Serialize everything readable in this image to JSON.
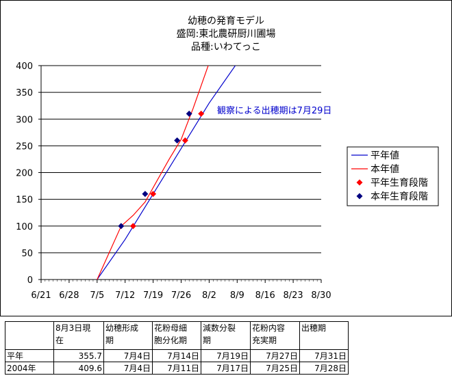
{
  "chart_data": {
    "type": "line",
    "title": [
      "幼穂の発育モデル",
      "盛岡:東北農研厨川圃場",
      "品種:いわてっこ"
    ],
    "x_ticks": [
      "6/21",
      "6/28",
      "7/5",
      "7/12",
      "7/19",
      "7/26",
      "8/2",
      "8/9",
      "8/16",
      "8/23",
      "8/30"
    ],
    "xlim": [
      "6/21",
      "8/30"
    ],
    "ylim": [
      0,
      400
    ],
    "y_ticks": [
      0,
      50,
      100,
      150,
      200,
      250,
      300,
      350,
      400
    ],
    "grid": "horizontal",
    "legend_position": "right",
    "series": [
      {
        "name": "平年値",
        "kind": "line",
        "color": "#0000cc",
        "x": [
          "7/5",
          "7/12",
          "7/19",
          "7/26",
          "8/2",
          "8/9"
        ],
        "y": [
          0,
          75,
          160,
          245,
          330,
          405
        ]
      },
      {
        "name": "本年値",
        "kind": "line",
        "color": "#ff0000",
        "x": [
          "7/5",
          "7/11",
          "7/14",
          "7/17",
          "7/20",
          "7/23",
          "7/26",
          "7/29",
          "8/2"
        ],
        "y": [
          0,
          100,
          120,
          145,
          185,
          225,
          262,
          320,
          405
        ]
      },
      {
        "name": "平年生育段階",
        "kind": "marker",
        "color": "#ff0000",
        "x": [
          "7/14",
          "7/19",
          "7/27",
          "7/31"
        ],
        "y": [
          100,
          160,
          260,
          310
        ]
      },
      {
        "name": "本年生育段階",
        "kind": "marker",
        "color": "#000080",
        "x": [
          "7/11",
          "7/17",
          "7/25",
          "7/28"
        ],
        "y": [
          100,
          160,
          260,
          310
        ]
      }
    ],
    "annotation": "観察による出穂期は7月29日"
  },
  "table": {
    "headers": [
      "8月3日現在",
      "幼穂形成期",
      "花粉母細胞分化期",
      "減数分裂期",
      "花粉内容充実期",
      "出穂期"
    ],
    "header_lines": [
      [
        "8月3日現",
        "在"
      ],
      [
        "幼穂形成",
        "期"
      ],
      [
        "花粉母細",
        "胞分化期"
      ],
      [
        "減数分裂",
        "期"
      ],
      [
        "花粉内容",
        "充実期"
      ],
      [
        "出穂期"
      ]
    ],
    "rows": [
      {
        "label": "平年",
        "values": [
          "355.7",
          "7月4日",
          "7月14日",
          "7月19日",
          "7月27日",
          "7月31日"
        ]
      },
      {
        "label": "2004年",
        "values": [
          "409.6",
          "7月4日",
          "7月11日",
          "7月17日",
          "7月25日",
          "7月28日"
        ]
      }
    ]
  }
}
